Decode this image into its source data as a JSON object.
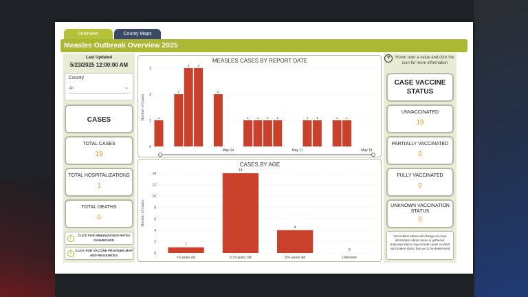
{
  "tabs": [
    {
      "label": "Overview",
      "active": true
    },
    {
      "label": "County Maps",
      "active": false
    }
  ],
  "header": {
    "title": "Measles Outbreak Overview 2025"
  },
  "left": {
    "last_updated_label": "Last Updated",
    "last_updated_value": "5/23/2025 12:00:00 AM",
    "county_slicer": {
      "label": "County",
      "selected": "All"
    },
    "cases_header": "CASES",
    "total_cases": {
      "label": "TOTAL CASES",
      "value": "19"
    },
    "total_hospitalizations": {
      "label": "TOTAL HOSPITALIZATIONS",
      "value": "1"
    },
    "total_deaths": {
      "label": "TOTAL DEATHS",
      "value": "0"
    },
    "link_immunization": "CLICK FOR IMMUNIZATION RATES DASHBOARD",
    "link_vaccine_provider": "CLICK FOR VACCINE PROVIDER MAP AND RESOURCES"
  },
  "right": {
    "help_text": "Hover over a value and click the icon for more information",
    "header": "CASE VACCINE STATUS",
    "unvaccinated": {
      "label": "UNVACCINATED",
      "value": "19"
    },
    "partially_vaccinated": {
      "label": "PARTIALLY VACCINATED",
      "value": "0"
    },
    "fully_vaccinated": {
      "label": "FULLY VACCINATED",
      "value": "0"
    },
    "unknown_status": {
      "label": "UNKNOWN VACCINATION STATUS",
      "value": "0"
    },
    "note": "Vaccination status will change as more information about cases is gathered. Unknown status may include cases in which vaccination status has yet to be determined"
  },
  "colors": {
    "bar": "#c9412b",
    "accent": "#aab834",
    "value": "#e99a2d",
    "tab_dark": "#3a4a64"
  },
  "chart_data": [
    {
      "type": "bar",
      "title": "MEASLES CASES BY REPORT DATE",
      "ylabel": "Number of Cases",
      "ylim": [
        0,
        3
      ],
      "yticks": [
        0,
        1,
        2,
        3
      ],
      "x_tick_labels": [
        "May 04",
        "May 11",
        "May 18"
      ],
      "x": [
        "Apr 27",
        "Apr 29",
        "Apr 30",
        "May 01",
        "May 03",
        "May 06",
        "May 07",
        "May 08",
        "May 09",
        "May 12",
        "May 13",
        "May 15",
        "May 16"
      ],
      "values": [
        1,
        2,
        3,
        3,
        2,
        1,
        1,
        1,
        1,
        1,
        1,
        1,
        1
      ]
    },
    {
      "type": "bar",
      "title": "CASES BY AGE",
      "ylabel": "Number of Cases",
      "ylim": [
        0,
        14
      ],
      "yticks": [
        0,
        2,
        4,
        6,
        8,
        10,
        12,
        14
      ],
      "categories": [
        "<5 years old",
        "5-19 years old",
        "20+ years old",
        "Unknown"
      ],
      "values": [
        1,
        14,
        4,
        0
      ]
    }
  ]
}
